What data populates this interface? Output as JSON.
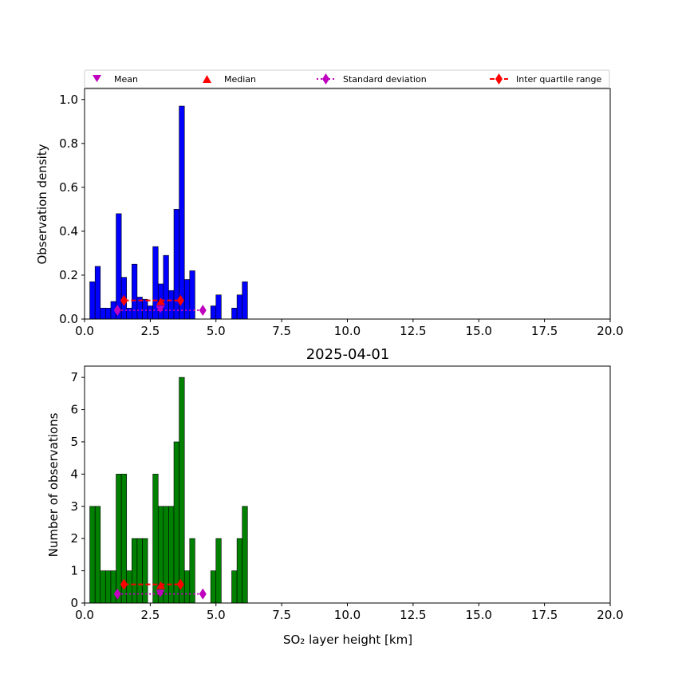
{
  "chart_data": [
    {
      "type": "bar",
      "id": "density",
      "title": "",
      "xlabel": "",
      "ylabel": "Observation density",
      "xlim": [
        0,
        20
      ],
      "ylim": [
        0,
        1.05
      ],
      "xticks": [
        "0.0",
        "2.5",
        "5.0",
        "7.5",
        "10.0",
        "12.5",
        "15.0",
        "17.5",
        "20.0"
      ],
      "yticks": [
        "0.0",
        "0.2",
        "0.4",
        "0.6",
        "0.8",
        "1.0"
      ],
      "ytick_values": [
        0,
        0.2,
        0.4,
        0.6,
        0.8,
        1.0
      ],
      "bin_width": 0.2,
      "bins": [
        {
          "x": 0.2,
          "value": 0.17
        },
        {
          "x": 0.4,
          "value": 0.24
        },
        {
          "x": 0.6,
          "value": 0.05
        },
        {
          "x": 0.8,
          "value": 0.05
        },
        {
          "x": 1.0,
          "value": 0.08
        },
        {
          "x": 1.2,
          "value": 0.48
        },
        {
          "x": 1.4,
          "value": 0.19
        },
        {
          "x": 1.6,
          "value": 0.05
        },
        {
          "x": 1.8,
          "value": 0.25
        },
        {
          "x": 2.0,
          "value": 0.1
        },
        {
          "x": 2.2,
          "value": 0.09
        },
        {
          "x": 2.4,
          "value": 0.06
        },
        {
          "x": 2.6,
          "value": 0.33
        },
        {
          "x": 2.8,
          "value": 0.16
        },
        {
          "x": 3.0,
          "value": 0.29
        },
        {
          "x": 3.2,
          "value": 0.13
        },
        {
          "x": 3.4,
          "value": 0.5
        },
        {
          "x": 3.6,
          "value": 0.97
        },
        {
          "x": 3.8,
          "value": 0.18
        },
        {
          "x": 4.0,
          "value": 0.22
        },
        {
          "x": 4.8,
          "value": 0.06
        },
        {
          "x": 5.0,
          "value": 0.11
        },
        {
          "x": 5.6,
          "value": 0.05
        },
        {
          "x": 5.8,
          "value": 0.11
        },
        {
          "x": 6.0,
          "value": 0.17
        }
      ],
      "bar_color": "#0000ff",
      "stats": {
        "mean": 2.88,
        "median": 2.9,
        "std": [
          1.25,
          4.5
        ],
        "iqr": [
          1.5,
          3.65
        ]
      },
      "stats_y": {
        "mean": 0.045,
        "median": 0.08,
        "std": 0.04,
        "iqr": 0.085
      }
    },
    {
      "type": "bar",
      "id": "counts",
      "title": "2025-04-01",
      "xlabel": "SO₂ layer height [km]",
      "ylabel": "Number of observations",
      "xlim": [
        0,
        20
      ],
      "ylim": [
        0,
        7.35
      ],
      "xticks": [
        "0.0",
        "2.5",
        "5.0",
        "7.5",
        "10.0",
        "12.5",
        "15.0",
        "17.5",
        "20.0"
      ],
      "yticks": [
        "0",
        "1",
        "2",
        "3",
        "4",
        "5",
        "6",
        "7"
      ],
      "ytick_values": [
        0,
        1,
        2,
        3,
        4,
        5,
        6,
        7
      ],
      "bin_width": 0.2,
      "bins": [
        {
          "x": 0.2,
          "value": 3
        },
        {
          "x": 0.4,
          "value": 3
        },
        {
          "x": 0.6,
          "value": 1
        },
        {
          "x": 0.8,
          "value": 1
        },
        {
          "x": 1.0,
          "value": 1
        },
        {
          "x": 1.2,
          "value": 4
        },
        {
          "x": 1.4,
          "value": 4
        },
        {
          "x": 1.6,
          "value": 1
        },
        {
          "x": 1.8,
          "value": 2
        },
        {
          "x": 2.0,
          "value": 2
        },
        {
          "x": 2.2,
          "value": 2
        },
        {
          "x": 2.6,
          "value": 4
        },
        {
          "x": 2.8,
          "value": 3
        },
        {
          "x": 3.0,
          "value": 3
        },
        {
          "x": 3.2,
          "value": 3
        },
        {
          "x": 3.4,
          "value": 5
        },
        {
          "x": 3.6,
          "value": 7
        },
        {
          "x": 3.8,
          "value": 1
        },
        {
          "x": 4.0,
          "value": 2
        },
        {
          "x": 4.8,
          "value": 1
        },
        {
          "x": 5.0,
          "value": 2
        },
        {
          "x": 5.6,
          "value": 1
        },
        {
          "x": 5.8,
          "value": 2
        },
        {
          "x": 6.0,
          "value": 3
        }
      ],
      "bar_color": "#008000",
      "stats": {
        "mean": 2.88,
        "median": 2.9,
        "std": [
          1.25,
          4.5
        ],
        "iqr": [
          1.5,
          3.65
        ]
      },
      "stats_y": {
        "mean": 0.3,
        "median": 0.55,
        "std": 0.28,
        "iqr": 0.58
      }
    }
  ],
  "legend": {
    "placement": "top",
    "entries": [
      {
        "label": "Mean",
        "marker": "triangle-down",
        "color": "#bf00bf"
      },
      {
        "label": "Median",
        "marker": "triangle-up",
        "color": "#ff0000"
      },
      {
        "label": "Standard deviation",
        "marker": "diamond-dotted",
        "color": "#bf00bf"
      },
      {
        "label": "Inter quartile range",
        "marker": "diamond-dashed",
        "color": "#ff0000"
      }
    ]
  }
}
